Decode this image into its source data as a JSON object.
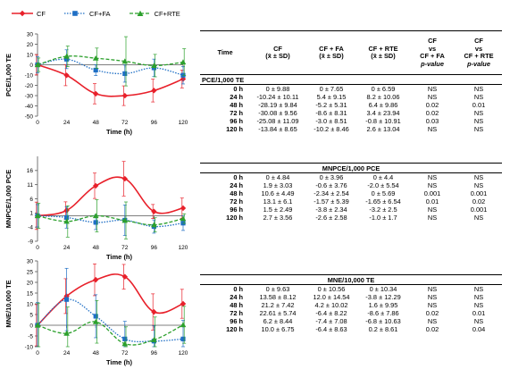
{
  "legend": [
    {
      "name": "CF",
      "color": "#e8202a",
      "marker": "diamond",
      "dash": "solid"
    },
    {
      "name": "CF+FA",
      "color": "#1f6fc5",
      "marker": "square",
      "dash": "dot"
    },
    {
      "name": "CF+RTE",
      "color": "#2ca02c",
      "marker": "triangle",
      "dash": "dash"
    }
  ],
  "tables": [
    {
      "header": [
        "Time",
        "CF\n(x̄ ± SD)",
        "CF + FA\n(x̄ ± SD)",
        "CF + RTE\n(x̄ ± SD)",
        "CF\nvs\nCF + FA\np-value",
        "CF\nvs\nCF + RTE\np-value"
      ],
      "title": "PCE/1,000 TE",
      "rows": [
        [
          "0 h",
          "0 ± 9.88",
          "0 ± 7.65",
          "0 ± 6.59",
          "NS",
          "NS"
        ],
        [
          "24 h",
          "-10.24 ± 10.11",
          "5.4 ± 9.15",
          "8.2 ± 10.06",
          "NS",
          "NS"
        ],
        [
          "48 h",
          "-28.19 ± 9.84",
          "-5.2 ± 5.31",
          "6.4 ± 9.86",
          "0.02",
          "0.01"
        ],
        [
          "72 h",
          "-30.08 ± 9.56",
          "-8.6 ± 8.31",
          "3.4 ± 23.94",
          "0.02",
          "NS"
        ],
        [
          "96 h",
          "-25.08 ± 11.09",
          "-3.0 ± 8.51",
          "-0.8 ± 10.91",
          "0.03",
          "NS"
        ],
        [
          "120 h",
          "-13.84 ± 8.65",
          "-10.2 ± 8.46",
          "2.6 ± 13.04",
          "NS",
          "NS"
        ]
      ]
    },
    {
      "title": "MNPCE/1,000 PCE",
      "rows": [
        [
          "0 h",
          "0 ± 4.84",
          "0 ± 3.96",
          "0 ± 4.4",
          "NS",
          "NS"
        ],
        [
          "24 h",
          "1.9 ± 3.03",
          "-0.6 ± 3.76",
          "-2.0 ± 5.54",
          "NS",
          "NS"
        ],
        [
          "48 h",
          "10.6 ± 4.49",
          "-2.34 ± 2.54",
          "0 ± 5.69",
          "0.001",
          "0.001"
        ],
        [
          "72 h",
          "13.1 ± 6.1",
          "-1.57 ± 5.39",
          "-1.65 ± 6.54",
          "0.01",
          "0.02"
        ],
        [
          "96 h",
          "1.5 ± 2.49",
          "-3.8 ± 2.34",
          "-3.2 ± 2.5",
          "NS",
          "0.001"
        ],
        [
          "120 h",
          "2.7 ± 3.56",
          "-2.6 ± 2.58",
          "-1.0 ± 1.7",
          "NS",
          "NS"
        ]
      ]
    },
    {
      "title": "MNE/10,000 TE",
      "rows": [
        [
          "0 h",
          "0 ± 9.63",
          "0 ± 10.56",
          "0 ± 10.34",
          "NS",
          "NS"
        ],
        [
          "24 h",
          "13.58 ± 8.12",
          "12.0 ± 14.54",
          "-3.8 ± 12.29",
          "NS",
          "NS"
        ],
        [
          "48 h",
          "21.2 ± 7.42",
          "4.2 ± 10.02",
          "1.6 ± 9.95",
          "NS",
          "NS"
        ],
        [
          "72 h",
          "22.61 ± 5.74",
          "-6.4 ± 8.22",
          "-8.6 ± 7.86",
          "0.02",
          "0.01"
        ],
        [
          "96 h",
          "6.2 ± 8.44",
          "-7.4 ± 7.08",
          "-6.8 ± 10.63",
          "NS",
          "NS"
        ],
        [
          "120 h",
          "10.0 ± 6.75",
          "-6.4 ± 8.63",
          "0.2 ± 8.61",
          "0.02",
          "0.04"
        ]
      ]
    }
  ],
  "chart_data": [
    {
      "type": "line",
      "ylabel": "PCE/1,000  TE",
      "xlabel": "Time (h)",
      "x": [
        0,
        24,
        48,
        72,
        96,
        120
      ],
      "xticks": [
        "0",
        "24",
        "48",
        "72",
        "96",
        "120"
      ],
      "ylim": [
        -50,
        30
      ],
      "yticks": [
        -50,
        -40,
        -30,
        -20,
        -10,
        0,
        10,
        20,
        30
      ],
      "series": [
        {
          "name": "CF",
          "values": [
            0,
            -10.24,
            -28.19,
            -30.08,
            -25.08,
            -13.84
          ],
          "sd": [
            9.88,
            10.11,
            9.84,
            9.56,
            11.09,
            8.65
          ]
        },
        {
          "name": "CF+FA",
          "values": [
            0,
            5.4,
            -5.2,
            -8.6,
            -3.0,
            -10.2
          ],
          "sd": [
            7.65,
            9.15,
            5.31,
            8.31,
            8.51,
            8.46
          ]
        },
        {
          "name": "CF+RTE",
          "values": [
            0,
            8.2,
            6.4,
            3.4,
            -0.8,
            2.6
          ],
          "sd": [
            6.59,
            10.06,
            9.86,
            23.94,
            10.91,
            13.04
          ]
        }
      ]
    },
    {
      "type": "line",
      "ylabel": "MNPCE/1,000  PCE",
      "xlabel": "Time (h)",
      "x": [
        0,
        24,
        48,
        72,
        96,
        120
      ],
      "xticks": [
        "0",
        "24",
        "48",
        "72",
        "96",
        "120"
      ],
      "ylim": [
        -9,
        21
      ],
      "yticks": [
        -9,
        -4,
        1,
        6,
        11,
        16
      ],
      "series": [
        {
          "name": "CF",
          "values": [
            0,
            1.9,
            10.6,
            13.1,
            1.5,
            2.7
          ],
          "sd": [
            4.84,
            3.03,
            4.49,
            6.1,
            2.49,
            3.56
          ]
        },
        {
          "name": "CF+FA",
          "values": [
            0,
            -0.6,
            -2.34,
            -1.57,
            -3.8,
            -2.6
          ],
          "sd": [
            3.96,
            3.76,
            2.54,
            5.39,
            2.34,
            2.58
          ]
        },
        {
          "name": "CF+RTE",
          "values": [
            0,
            -2.0,
            0,
            -1.65,
            -3.2,
            -1.0
          ],
          "sd": [
            4.4,
            5.54,
            5.69,
            6.54,
            2.5,
            1.7
          ]
        }
      ]
    },
    {
      "type": "line",
      "ylabel": "MNE/10,000  TE",
      "xlabel": "Time (h)",
      "x": [
        0,
        24,
        48,
        72,
        96,
        120
      ],
      "xticks": [
        "0",
        "24",
        "48",
        "72",
        "96",
        "120"
      ],
      "ylim": [
        -10,
        30
      ],
      "yticks": [
        -10,
        -5,
        0,
        5,
        10,
        15,
        20,
        25,
        30
      ],
      "series": [
        {
          "name": "CF",
          "values": [
            0,
            13.58,
            21.2,
            22.61,
            6.2,
            10.0
          ],
          "sd": [
            9.63,
            8.12,
            7.42,
            5.74,
            8.44,
            6.75
          ]
        },
        {
          "name": "CF+FA",
          "values": [
            0,
            12.0,
            4.2,
            -6.4,
            -7.4,
            -6.4
          ],
          "sd": [
            10.56,
            14.54,
            10.02,
            8.22,
            7.08,
            8.63
          ]
        },
        {
          "name": "CF+RTE",
          "values": [
            0,
            -3.8,
            1.6,
            -8.6,
            -6.8,
            0.2
          ],
          "sd": [
            10.34,
            12.29,
            9.95,
            7.86,
            10.63,
            8.61
          ]
        }
      ]
    }
  ]
}
